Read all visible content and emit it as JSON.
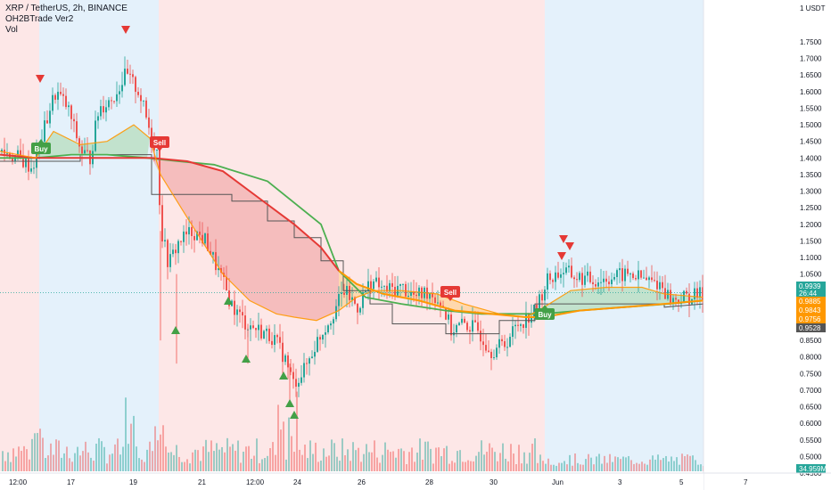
{
  "legend": {
    "symbol": "XRP / TetherUS, 2h, BINANCE",
    "indicator": "OH2BTrade Ver2",
    "volume": "Vol"
  },
  "colors": {
    "bull": "#26a69a",
    "bear": "#ef5350",
    "bg_red": "#fde7e7",
    "bg_blue": "#e4f1fb",
    "green_line": "#4caf50",
    "orange_line": "#ff9800",
    "dark_red_line": "#e53935",
    "step_line": "#555555",
    "fill_green": "#a5d6a7",
    "fill_red": "#ef9a9a",
    "fill_orange": "#ffcc80",
    "up_marker": "#43a047",
    "down_marker": "#e53935"
  },
  "x_axis": {
    "labels": [
      "12:00",
      "17",
      "19",
      "21",
      "12:00",
      "24",
      "26",
      "28",
      "30",
      "Jun",
      "3",
      "5",
      "7"
    ]
  },
  "y_axis": {
    "unit_label": "1 USDT",
    "ticks": [
      "1.7500",
      "1.7000",
      "1.6500",
      "1.6000",
      "1.5500",
      "1.5000",
      "1.4500",
      "1.4000",
      "1.3500",
      "1.3000",
      "1.2500",
      "1.2000",
      "1.1500",
      "1.1000",
      "1.0500",
      "0.8500",
      "0.8000",
      "0.7500",
      "0.7000",
      "0.6500",
      "0.6000",
      "0.5500",
      "0.5000",
      "0.4500"
    ]
  },
  "price_labels": [
    {
      "value": "0.9939",
      "color": "#26a69a"
    },
    {
      "value": "26:44",
      "color": "#26a69a"
    },
    {
      "value": "0.9885",
      "color": "#ff9800"
    },
    {
      "value": "0.9843",
      "color": "#ff9800"
    },
    {
      "value": "0.9756",
      "color": "#ff9800"
    },
    {
      "value": "0.9528",
      "color": "#555555"
    },
    {
      "value": "34.959M",
      "color": "#26a69a"
    }
  ],
  "signals": [
    {
      "type": "buy",
      "label": "Buy"
    },
    {
      "type": "sell",
      "label": "Sell"
    },
    {
      "type": "sell",
      "label": "Sell"
    },
    {
      "type": "buy",
      "label": "Buy"
    }
  ],
  "chart_data": {
    "type": "candlestick",
    "symbol": "XRP / TetherUS",
    "interval": "2h",
    "exchange": "BINANCE",
    "closes_sampled": [
      1.42,
      1.4,
      1.37,
      1.45,
      1.52,
      1.6,
      1.55,
      1.45,
      1.4,
      1.55,
      1.6,
      1.68,
      1.62,
      1.55,
      1.5,
      1.42,
      1.18,
      1.05,
      1.12,
      1.15,
      1.1,
      1.05,
      0.95,
      0.9,
      0.88,
      0.86,
      0.82,
      0.72,
      0.75,
      0.82,
      0.88,
      0.95,
      1.0,
      1.02,
      0.98,
      1.0,
      0.99,
      0.96,
      0.98,
      0.9,
      0.88,
      0.84,
      0.86,
      0.9,
      0.94,
      1.03,
      1.05,
      1.04,
      1.03,
      1.05,
      1.04,
      0.97,
      0.99
    ],
    "last_price": 0.9939,
    "countdown": "26:44",
    "ma_values": [
      0.9885,
      0.9843,
      0.9756
    ],
    "step_value": 0.9528,
    "volume_last": "34.959M"
  }
}
